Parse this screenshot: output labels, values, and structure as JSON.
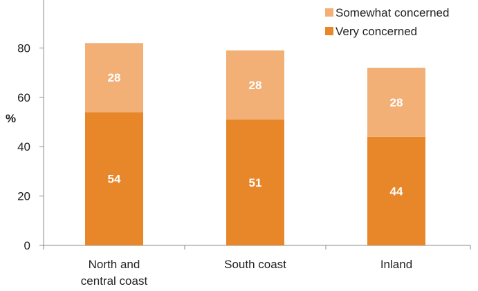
{
  "chart_data": {
    "type": "bar",
    "stacked": true,
    "title": "",
    "xlabel": "",
    "ylabel": "%",
    "ylim": [
      0,
      100
    ],
    "yticks": [
      0,
      20,
      40,
      60,
      80
    ],
    "grid": false,
    "legend_placement": "top-right",
    "categories": [
      "North and central coast",
      "South coast",
      "Inland"
    ],
    "category_lines": [
      [
        "North and",
        "central coast"
      ],
      [
        "South coast"
      ],
      [
        "Inland"
      ]
    ],
    "series": [
      {
        "name": "Very concerned",
        "values": [
          54,
          51,
          44
        ],
        "color": "#E8862A"
      },
      {
        "name": "Somewhat concerned",
        "values": [
          28,
          28,
          28
        ],
        "color": "#F2B077"
      }
    ],
    "legend_order": [
      "Somewhat concerned",
      "Very concerned"
    ]
  }
}
